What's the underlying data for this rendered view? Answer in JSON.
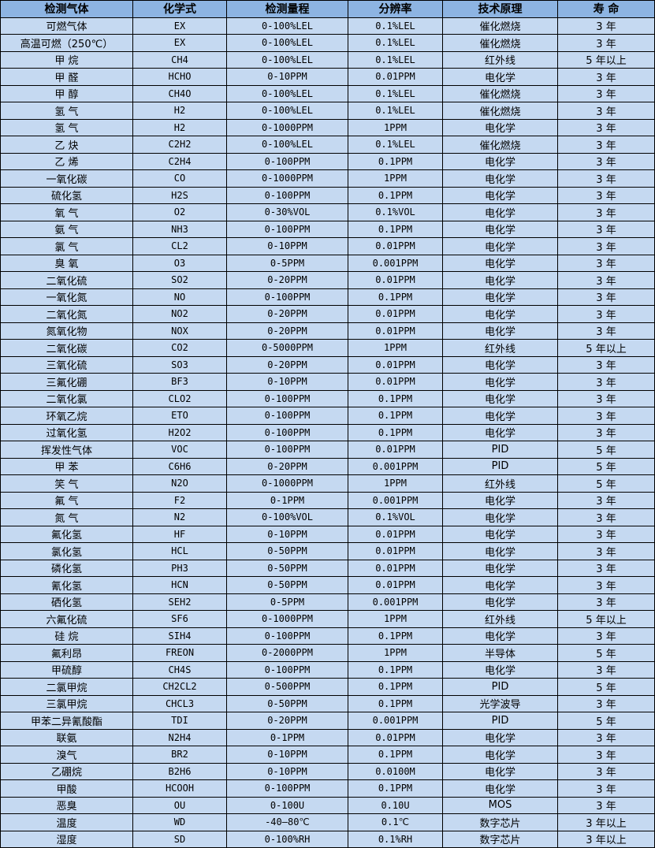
{
  "colors": {
    "header_bg": "#8db4e2",
    "cell_bg": "#c5d9f1",
    "border": "#000000"
  },
  "table": {
    "headers": [
      "检测气体",
      "化学式",
      "检测量程",
      "分辨率",
      "技术原理",
      "寿 命"
    ],
    "rows": [
      [
        "可燃气体",
        "EX",
        "0-100%LEL",
        "0.1%LEL",
        "催化燃烧",
        "3 年"
      ],
      [
        "高温可燃（250℃）",
        "EX",
        "0-100%LEL",
        "0.1%LEL",
        "催化燃烧",
        "3 年"
      ],
      [
        "甲 烷",
        "CH4",
        "0-100%LEL",
        "0.1%LEL",
        "红外线",
        "5 年以上"
      ],
      [
        "甲 醛",
        "HCHO",
        "0-10PPM",
        "0.01PPM",
        "电化学",
        "3 年"
      ],
      [
        "甲 醇",
        "CH4O",
        "0-100%LEL",
        "0.1%LEL",
        "催化燃烧",
        "3 年"
      ],
      [
        "氢 气",
        "H2",
        "0-100%LEL",
        "0.1%LEL",
        "催化燃烧",
        "3 年"
      ],
      [
        "氢 气",
        "H2",
        "0-1000PPM",
        "1PPM",
        "电化学",
        "3 年"
      ],
      [
        "乙 炔",
        "C2H2",
        "0-100%LEL",
        "0.1%LEL",
        "催化燃烧",
        "3 年"
      ],
      [
        "乙 烯",
        "C2H4",
        "0-100PPM",
        "0.1PPM",
        "电化学",
        "3 年"
      ],
      [
        "一氧化碳",
        "CO",
        "0-1000PPM",
        "1PPM",
        "电化学",
        "3 年"
      ],
      [
        "硫化氢",
        "H2S",
        "0-100PPM",
        "0.1PPM",
        "电化学",
        "3 年"
      ],
      [
        "氧 气",
        "O2",
        "0-30%VOL",
        "0.1%VOL",
        "电化学",
        "3 年"
      ],
      [
        "氨 气",
        "NH3",
        "0-100PPM",
        "0.1PPM",
        "电化学",
        "3 年"
      ],
      [
        "氯 气",
        "CL2",
        "0-10PPM",
        "0.01PPM",
        "电化学",
        "3 年"
      ],
      [
        "臭 氧",
        "O3",
        "0-5PPM",
        "0.001PPM",
        "电化学",
        "3 年"
      ],
      [
        "二氧化硫",
        "SO2",
        "0-20PPM",
        "0.01PPM",
        "电化学",
        "3 年"
      ],
      [
        "一氧化氮",
        "NO",
        "0-100PPM",
        "0.1PPM",
        "电化学",
        "3 年"
      ],
      [
        "二氧化氮",
        "NO2",
        "0-20PPM",
        "0.01PPM",
        "电化学",
        "3 年"
      ],
      [
        "氮氧化物",
        "NOX",
        "0-20PPM",
        "0.01PPM",
        "电化学",
        "3 年"
      ],
      [
        "二氧化碳",
        "CO2",
        "0-5000PPM",
        "1PPM",
        "红外线",
        "5 年以上"
      ],
      [
        "三氧化硫",
        "SO3",
        "0-20PPM",
        "0.01PPM",
        "电化学",
        "3 年"
      ],
      [
        "三氟化硼",
        "BF3",
        "0-10PPM",
        "0.01PPM",
        "电化学",
        "3 年"
      ],
      [
        "二氧化氯",
        "CLO2",
        "0-100PPM",
        "0.1PPM",
        "电化学",
        "3 年"
      ],
      [
        "环氧乙烷",
        "ETO",
        "0-100PPM",
        "0.1PPM",
        "电化学",
        "3 年"
      ],
      [
        "过氧化氢",
        "H2O2",
        "0-100PPM",
        "0.1PPM",
        "电化学",
        "3 年"
      ],
      [
        "挥发性气体",
        "VOC",
        "0-100PPM",
        "0.01PPM",
        "PID",
        "5 年"
      ],
      [
        "甲 苯",
        "C6H6",
        "0-20PPM",
        "0.001PPM",
        "PID",
        "5 年"
      ],
      [
        "笑 气",
        "N2O",
        "0-1000PPM",
        "1PPM",
        "红外线",
        "5 年"
      ],
      [
        "氟 气",
        "F2",
        "0-1PPM",
        "0.001PPM",
        "电化学",
        "3 年"
      ],
      [
        "氮 气",
        "N2",
        "0-100%VOL",
        "0.1%VOL",
        "电化学",
        "3 年"
      ],
      [
        "氟化氢",
        "HF",
        "0-10PPM",
        "0.01PPM",
        "电化学",
        "3 年"
      ],
      [
        "氯化氢",
        "HCL",
        "0-50PPM",
        "0.01PPM",
        "电化学",
        "3 年"
      ],
      [
        "磷化氢",
        "PH3",
        "0-50PPM",
        "0.01PPM",
        "电化学",
        "3 年"
      ],
      [
        "氰化氢",
        "HCN",
        "0-50PPM",
        "0.01PPM",
        "电化学",
        "3 年"
      ],
      [
        "硒化氢",
        "SEH2",
        "0-5PPM",
        "0.001PPM",
        "电化学",
        "3 年"
      ],
      [
        "六氟化硫",
        "SF6",
        "0-1000PPM",
        "1PPM",
        "红外线",
        "5 年以上"
      ],
      [
        "硅 烷",
        "SIH4",
        "0-100PPM",
        "0.1PPM",
        "电化学",
        "3 年"
      ],
      [
        "氟利昂",
        "FREON",
        "0-2000PPM",
        "1PPM",
        "半导体",
        "5 年"
      ],
      [
        "甲硫醇",
        "CH4S",
        "0-100PPM",
        "0.1PPM",
        "电化学",
        "3 年"
      ],
      [
        "二氯甲烷",
        "CH2CL2",
        "0-500PPM",
        "0.1PPM",
        "PID",
        "5 年"
      ],
      [
        "三氯甲烷",
        "CHCL3",
        "0-50PPM",
        "0.1PPM",
        "光学波导",
        "3 年"
      ],
      [
        "甲苯二异氰酸酯",
        "TDI",
        "0-20PPM",
        "0.001PPM",
        "PID",
        "5 年"
      ],
      [
        "联氨",
        "N2H4",
        "0-1PPM",
        "0.01PPM",
        "电化学",
        "3 年"
      ],
      [
        "溴气",
        "BR2",
        "0-10PPM",
        "0.1PPM",
        "电化学",
        "3 年"
      ],
      [
        "乙硼烷",
        "B2H6",
        "0-10PPM",
        "0.0100M",
        "电化学",
        "3 年"
      ],
      [
        "甲酸",
        "HCOOH",
        "0-100PPM",
        "0.1PPM",
        "电化学",
        "3 年"
      ],
      [
        "恶臭",
        "OU",
        "0-100U",
        "0.10U",
        "MOS",
        "3 年"
      ],
      [
        "温度",
        "WD",
        "-40—80℃",
        "0.1℃",
        "数字芯片",
        "3 年以上"
      ],
      [
        "湿度",
        "SD",
        "0-100%RH",
        "0.1%RH",
        "数字芯片",
        "3 年以上"
      ]
    ]
  }
}
